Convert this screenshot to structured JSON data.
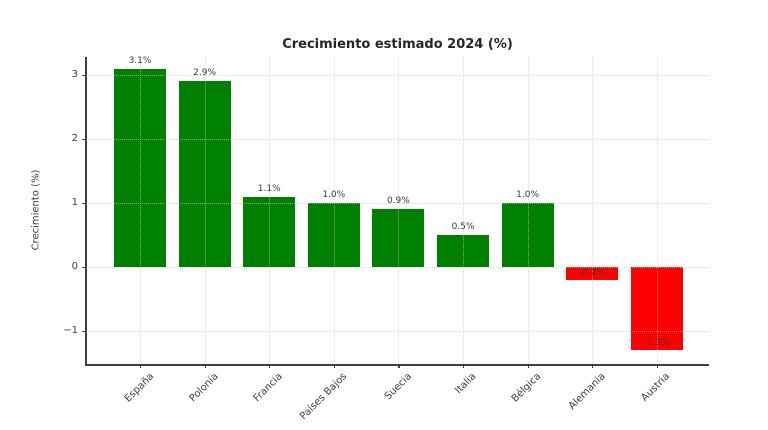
{
  "chart_data": {
    "type": "bar",
    "title": "Crecimiento estimado 2024 (%)",
    "xlabel": "",
    "ylabel": "Crecimiento (%)",
    "categories": [
      "España",
      "Polonia",
      "Francia",
      "Países Bajos",
      "Suecia",
      "Italia",
      "Bélgica",
      "Alemania",
      "Austria"
    ],
    "values": [
      3.1,
      2.9,
      1.1,
      1.0,
      0.9,
      0.5,
      1.0,
      -0.2,
      -1.3
    ],
    "value_labels": [
      "3.1%",
      "2.9%",
      "1.1%",
      "1.0%",
      "0.9%",
      "0.5%",
      "1.0%",
      "-0.2%",
      "-1.3%"
    ],
    "yticks": [
      {
        "label": "−1",
        "value": -1
      },
      {
        "label": "0",
        "value": 0
      },
      {
        "label": "1",
        "value": 1
      },
      {
        "label": "2",
        "value": 2
      },
      {
        "label": "3",
        "value": 3
      }
    ],
    "ylim": [
      -1.52,
      3.28
    ],
    "grid": true,
    "grid_style": "dotted",
    "legend": null,
    "colors": {
      "positive_bar": "#008000",
      "negative_bar": "#ff0000",
      "grid": "#e0e0e0",
      "spine": "#3f3f3f",
      "title_text": "#262626",
      "tick_text": "#3d3d3d"
    }
  }
}
